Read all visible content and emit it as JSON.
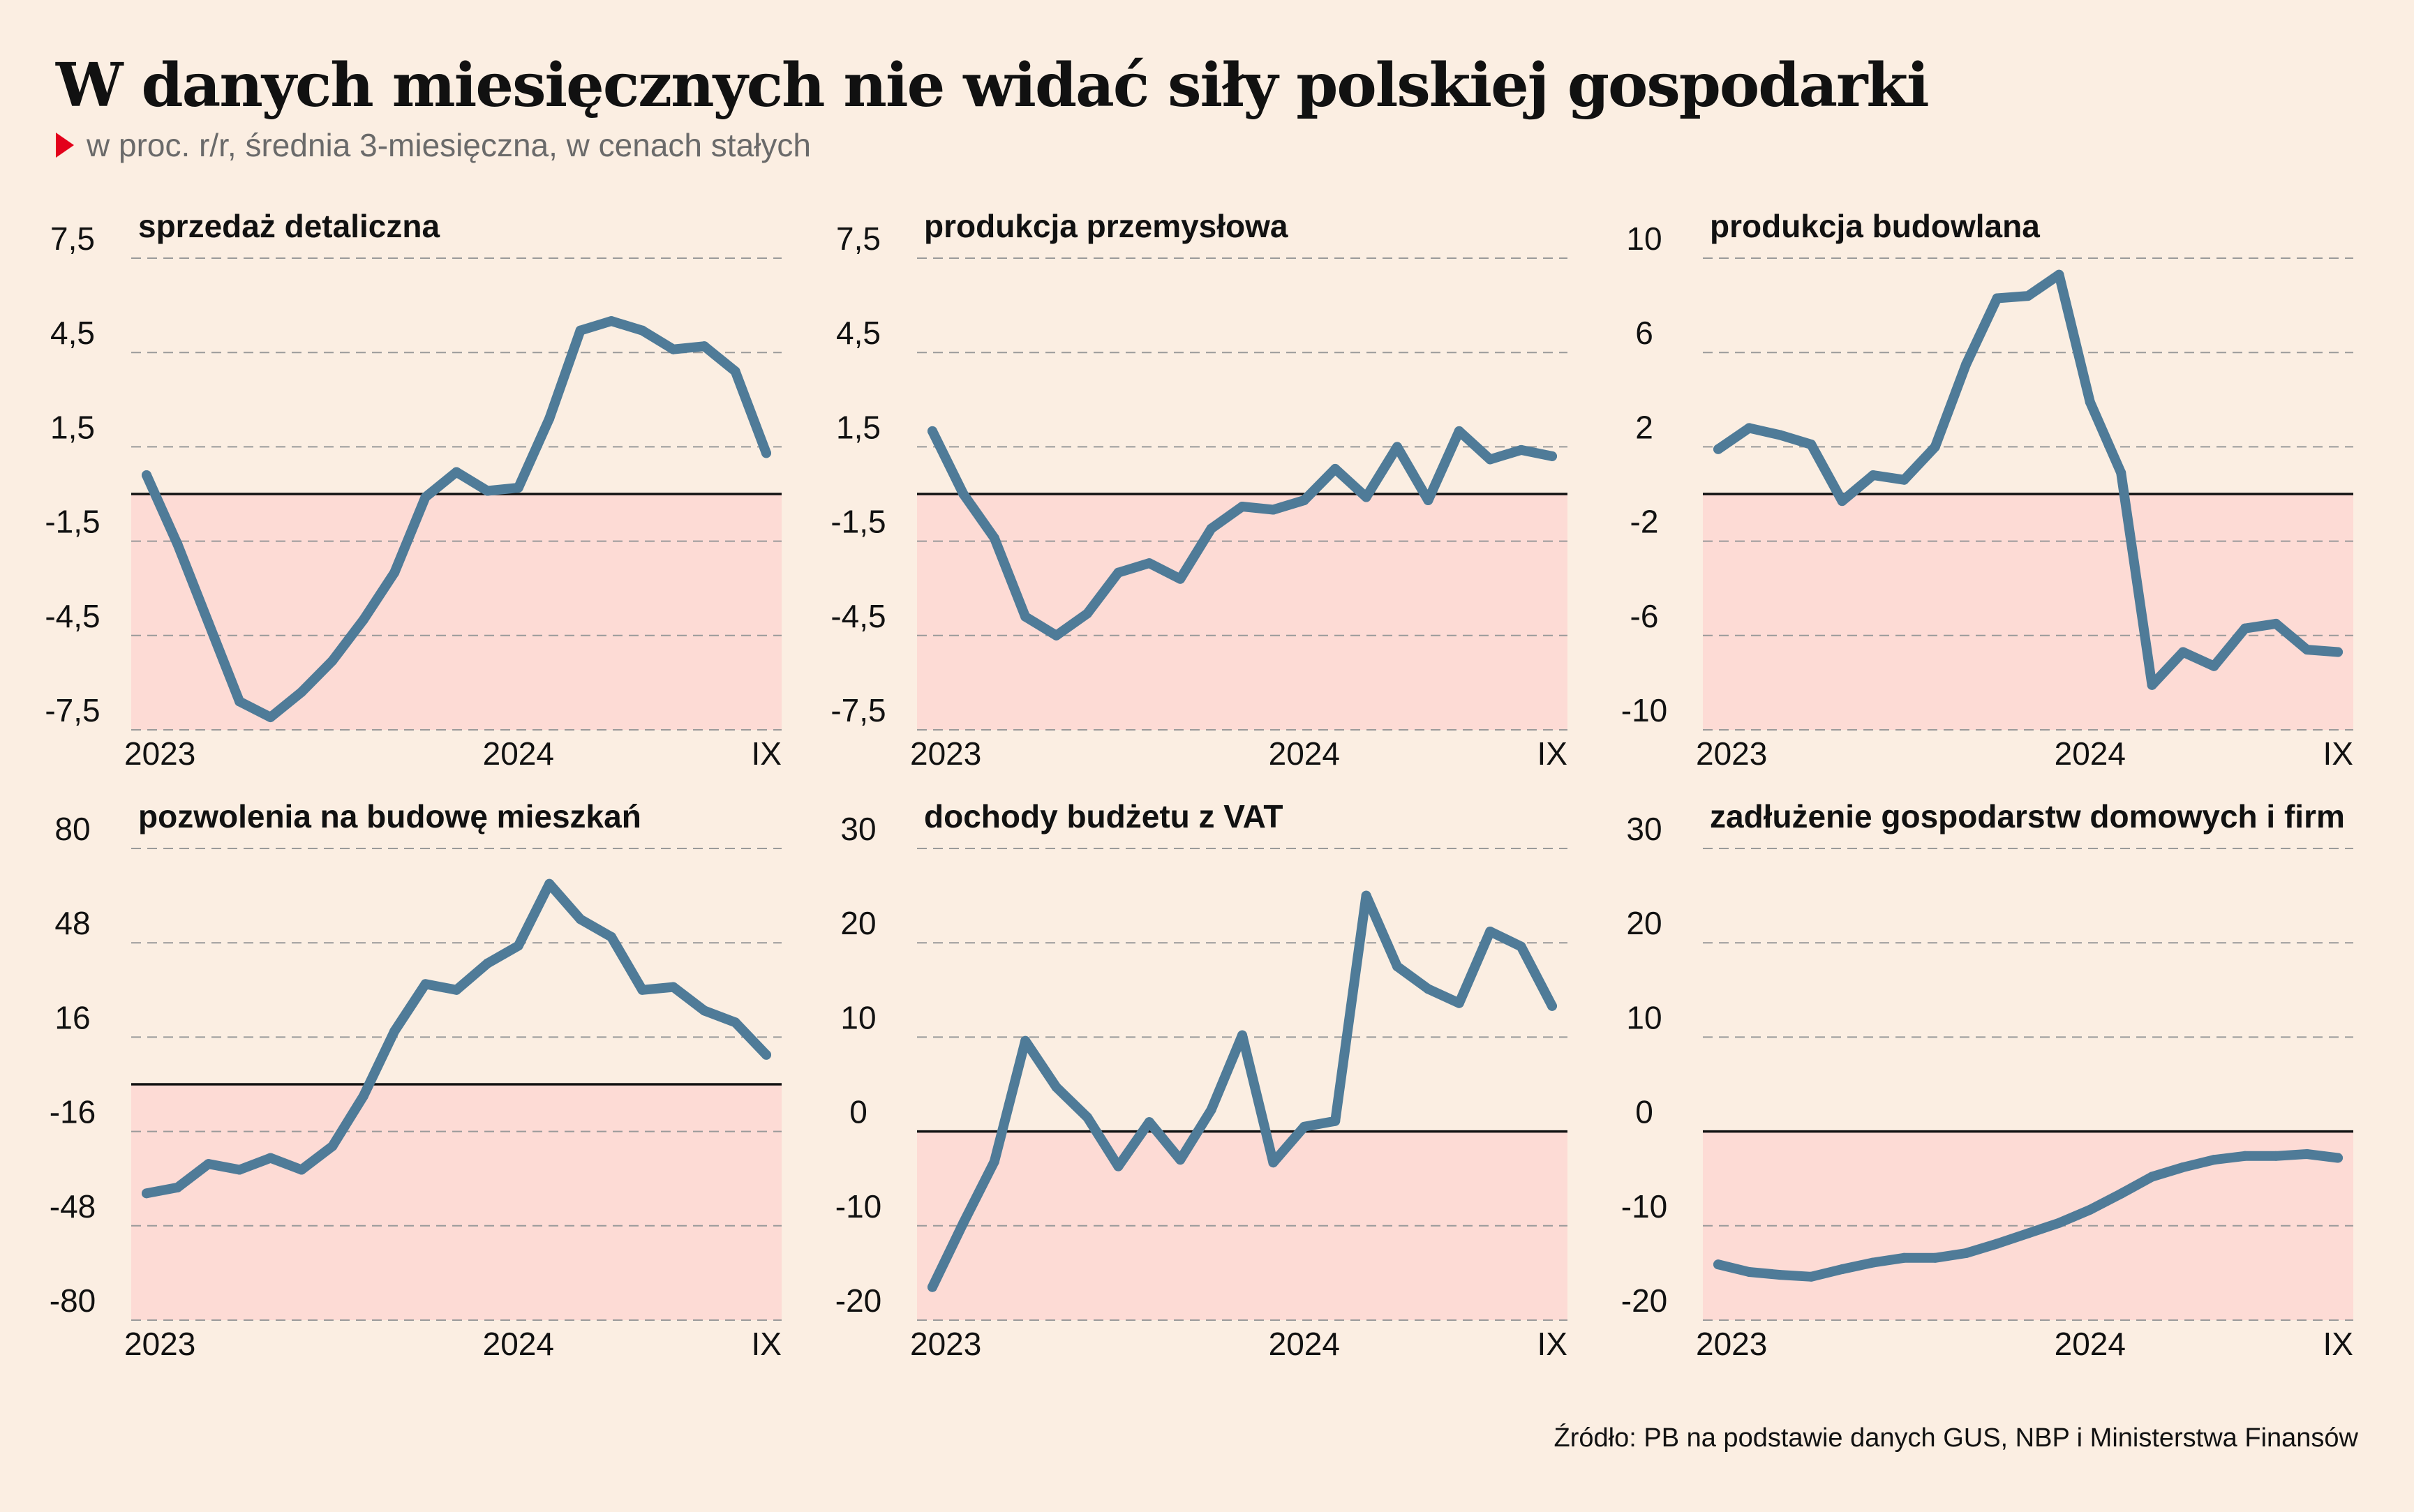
{
  "header": {
    "title": "W danych miesięcznych nie widać siły polskiej gospodarki",
    "subtitle": "w proc. r/r, średnia 3-miesięczna, w cenach stałych"
  },
  "footer": {
    "source": "Źródło: PB na podstawie danych GUS, NBP i Ministerstwa Finansów"
  },
  "colors": {
    "background": "#fbeee2",
    "negative_area": "#fddbd5",
    "line": "#4f7b98",
    "gridline": "#9a9a9a",
    "zero_line": "#111111",
    "accent_marker": "#e3001b"
  },
  "chart_data": [
    {
      "type": "line",
      "title": "sprzedaż detaliczna",
      "x_ticks": [
        "2023",
        "2024",
        "IX"
      ],
      "y_ticks": [
        "7,5",
        "4,5",
        "1,5",
        "-1,5",
        "-4,5",
        "-7,5"
      ],
      "ylim": [
        -7.5,
        7.5
      ],
      "grid": "dashed horizontal",
      "negative_shaded": true,
      "x": [
        "2023-01",
        "2023-02",
        "2023-03",
        "2023-04",
        "2023-05",
        "2023-06",
        "2023-07",
        "2023-08",
        "2023-09",
        "2023-10",
        "2023-11",
        "2023-12",
        "2024-01",
        "2024-02",
        "2024-03",
        "2024-04",
        "2024-05",
        "2024-06",
        "2024-07",
        "2024-08",
        "2024-09"
      ],
      "values": [
        0.6,
        -1.6,
        -4.1,
        -6.6,
        -7.1,
        -6.3,
        -5.3,
        -4.0,
        -2.5,
        -0.1,
        0.7,
        0.1,
        0.2,
        2.4,
        5.2,
        5.5,
        5.2,
        4.6,
        4.7,
        3.9,
        1.3
      ]
    },
    {
      "type": "line",
      "title": "produkcja przemysłowa",
      "x_ticks": [
        "2023",
        "2024",
        "IX"
      ],
      "y_ticks": [
        "7,5",
        "4,5",
        "1,5",
        "-1,5",
        "-4,5",
        "-7,5"
      ],
      "ylim": [
        -7.5,
        7.5
      ],
      "grid": "dashed horizontal",
      "negative_shaded": true,
      "x": [
        "2023-01",
        "2023-02",
        "2023-03",
        "2023-04",
        "2023-05",
        "2023-06",
        "2023-07",
        "2023-08",
        "2023-09",
        "2023-10",
        "2023-11",
        "2023-12",
        "2024-01",
        "2024-02",
        "2024-03",
        "2024-04",
        "2024-05",
        "2024-06",
        "2024-07",
        "2024-08",
        "2024-09"
      ],
      "values": [
        2.0,
        0.0,
        -1.4,
        -3.9,
        -4.5,
        -3.8,
        -2.5,
        -2.2,
        -2.7,
        -1.1,
        -0.4,
        -0.5,
        -0.2,
        0.8,
        -0.1,
        1.5,
        -0.2,
        2.0,
        1.1,
        1.4,
        1.2
      ]
    },
    {
      "type": "line",
      "title": "produkcja budowlana",
      "x_ticks": [
        "2023",
        "2024",
        "IX"
      ],
      "y_ticks": [
        "10",
        "6",
        "2",
        "-2",
        "-6",
        "-10"
      ],
      "ylim": [
        -10,
        10
      ],
      "grid": "dashed horizontal",
      "negative_shaded": true,
      "x": [
        "2023-01",
        "2023-02",
        "2023-03",
        "2023-04",
        "2023-05",
        "2023-06",
        "2023-07",
        "2023-08",
        "2023-09",
        "2023-10",
        "2023-11",
        "2023-12",
        "2024-01",
        "2024-02",
        "2024-03",
        "2024-04",
        "2024-05",
        "2024-06",
        "2024-07",
        "2024-08",
        "2024-09"
      ],
      "values": [
        1.9,
        2.8,
        2.5,
        2.1,
        -0.3,
        0.8,
        0.6,
        2.0,
        5.5,
        8.3,
        8.4,
        9.3,
        3.9,
        0.9,
        -8.1,
        -6.7,
        -7.3,
        -5.7,
        -5.5,
        -6.6,
        -6.7
      ]
    },
    {
      "type": "line",
      "title": "pozwolenia na budowę mieszkań",
      "x_ticks": [
        "2023",
        "2024",
        "IX"
      ],
      "y_ticks": [
        "80",
        "48",
        "16",
        "-16",
        "-48",
        "-80"
      ],
      "ylim": [
        -80,
        80
      ],
      "grid": "dashed horizontal",
      "negative_shaded": true,
      "x": [
        "2023-01",
        "2023-02",
        "2023-03",
        "2023-04",
        "2023-05",
        "2023-06",
        "2023-07",
        "2023-08",
        "2023-09",
        "2023-10",
        "2023-11",
        "2023-12",
        "2024-01",
        "2024-02",
        "2024-03",
        "2024-04",
        "2024-05",
        "2024-06",
        "2024-07",
        "2024-08",
        "2024-09"
      ],
      "values": [
        -37,
        -35,
        -27,
        -29,
        -25,
        -29,
        -21,
        -4,
        18,
        34,
        32,
        41,
        47,
        68,
        56,
        50,
        32,
        33,
        25,
        21,
        10
      ]
    },
    {
      "type": "line",
      "title": "dochody budżetu z VAT",
      "x_ticks": [
        "2023",
        "2024",
        "IX"
      ],
      "y_ticks": [
        "30",
        "20",
        "10",
        "0",
        "-10",
        "-20"
      ],
      "ylim": [
        -20,
        30
      ],
      "grid": "dashed horizontal",
      "negative_shaded": true,
      "x": [
        "2023-01",
        "2023-02",
        "2023-03",
        "2023-04",
        "2023-05",
        "2023-06",
        "2023-07",
        "2023-08",
        "2023-09",
        "2023-10",
        "2023-11",
        "2023-12",
        "2024-01",
        "2024-02",
        "2024-03",
        "2024-04",
        "2024-05",
        "2024-06",
        "2024-07",
        "2024-08",
        "2024-09"
      ],
      "values": [
        -16.5,
        -9.7,
        -3.2,
        9.6,
        4.7,
        1.5,
        -3.7,
        1.0,
        -3.0,
        2.3,
        10.2,
        -3.3,
        0.5,
        1.1,
        25.0,
        17.5,
        15.1,
        13.6,
        21.2,
        19.6,
        13.3
      ]
    },
    {
      "type": "line",
      "title": "zadłużenie gospodarstw domowych i firm",
      "x_ticks": [
        "2023",
        "2024",
        "IX"
      ],
      "y_ticks": [
        "30",
        "20",
        "10",
        "0",
        "-10",
        "-20"
      ],
      "ylim": [
        -20,
        30
      ],
      "grid": "dashed horizontal",
      "negative_shaded": true,
      "x": [
        "2023-01",
        "2023-02",
        "2023-03",
        "2023-04",
        "2023-05",
        "2023-06",
        "2023-07",
        "2023-08",
        "2023-09",
        "2023-10",
        "2023-11",
        "2023-12",
        "2024-01",
        "2024-02",
        "2024-03",
        "2024-04",
        "2024-05",
        "2024-06",
        "2024-07",
        "2024-08",
        "2024-09"
      ],
      "values": [
        -14.1,
        -14.9,
        -15.2,
        -15.4,
        -14.6,
        -13.9,
        -13.4,
        -13.4,
        -12.9,
        -11.9,
        -10.8,
        -9.7,
        -8.3,
        -6.6,
        -4.8,
        -3.8,
        -3.0,
        -2.6,
        -2.6,
        -2.4,
        -2.8
      ]
    }
  ]
}
